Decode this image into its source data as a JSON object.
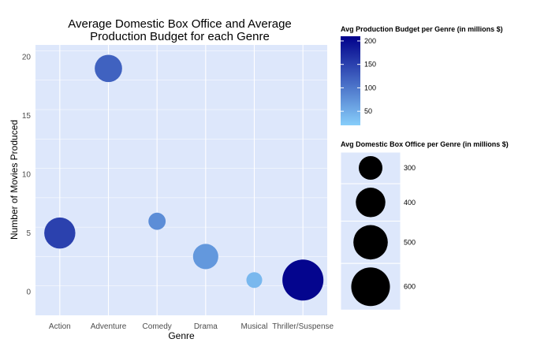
{
  "chart_data": {
    "type": "scatter",
    "title_line1": "Average Domestic Box Office and Average",
    "title_line2": "Production Budget for each Genre",
    "xlabel": "Genre",
    "ylabel": "Number of Movies Produced",
    "categories": [
      "Action",
      "Adventure",
      "Comedy",
      "Drama",
      "Musical",
      "Thriller/Suspense"
    ],
    "points": [
      {
        "genre": "Action",
        "movies": 5,
        "box_office": 430,
        "budget": 150
      },
      {
        "genre": "Adventure",
        "movies": 19,
        "box_office": 360,
        "budget": 120
      },
      {
        "genre": "Comedy",
        "movies": 6,
        "box_office": 215,
        "budget": 80
      },
      {
        "genre": "Drama",
        "movies": 3,
        "box_office": 325,
        "budget": 70
      },
      {
        "genre": "Musical",
        "movies": 1,
        "box_office": 200,
        "budget": 40
      },
      {
        "genre": "Thriller/Suspense",
        "movies": 1,
        "box_office": 660,
        "budget": 205
      }
    ],
    "ylim": [
      -2,
      21
    ],
    "yticks": [
      0,
      5,
      10,
      15,
      20
    ],
    "grid": true,
    "background_color": "#dde7fb",
    "color_scale": {
      "title": "Avg Production Budget per Genre (in millions $)",
      "low_value": 20,
      "high_value": 210,
      "low_color": "#87cefa",
      "high_color": "#00008b",
      "ticks": [
        50,
        100,
        150,
        200
      ]
    },
    "size_scale": {
      "title": "Avg Domestic Box Office per Genre (in millions $)",
      "values": [
        300,
        400,
        500,
        600
      ],
      "color": "#000000"
    }
  }
}
